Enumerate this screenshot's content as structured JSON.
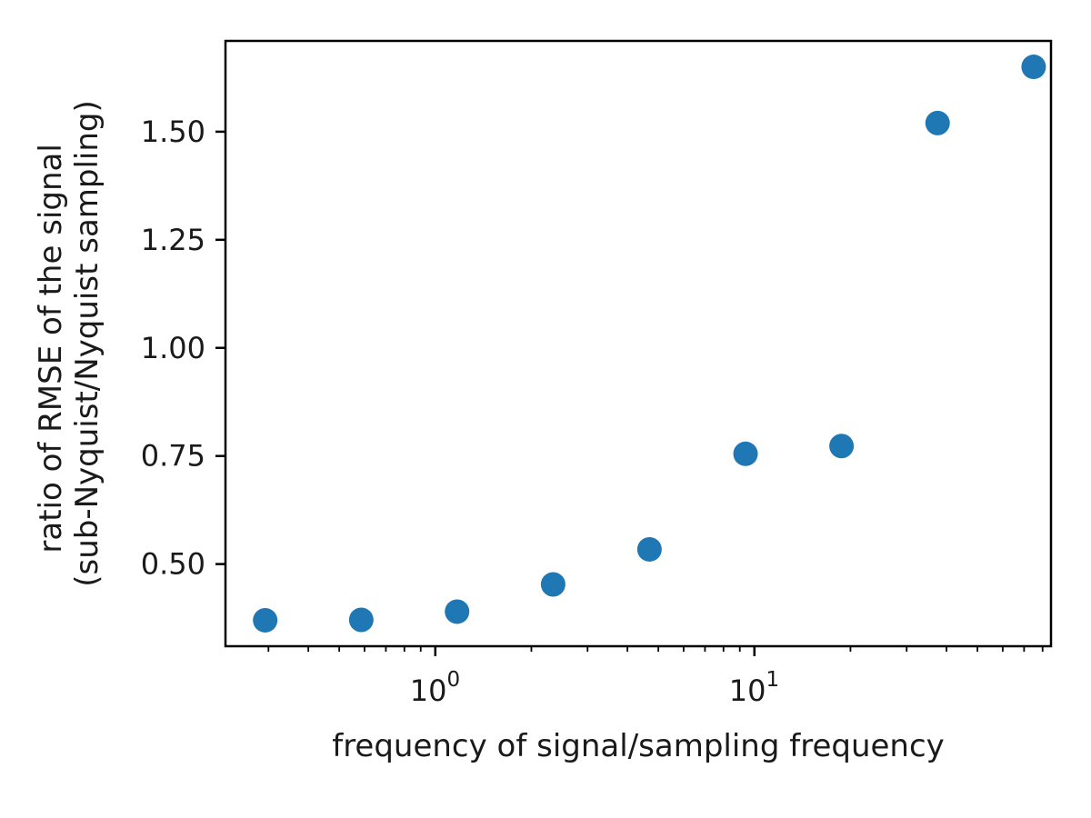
{
  "chart_data": {
    "type": "scatter",
    "title": "",
    "xlabel": "frequency of signal/sampling frequency",
    "ylabel_lines": [
      "ratio of RMSE of the signal",
      "(sub-Nyquist/Nyquist sampling)"
    ],
    "x_scale": "log",
    "xlim": [
      0.22,
      85
    ],
    "ylim": [
      0.31,
      1.71
    ],
    "grid": false,
    "legend": "none",
    "marker_color": "#1f77b4",
    "x_major_ticks": [
      {
        "value": 1,
        "base": "10",
        "exp": "0"
      },
      {
        "value": 10,
        "base": "10",
        "exp": "1"
      }
    ],
    "y_ticks": [
      {
        "value": 0.5,
        "label": "0.50"
      },
      {
        "value": 0.75,
        "label": "0.75"
      },
      {
        "value": 1.0,
        "label": "1.00"
      },
      {
        "value": 1.25,
        "label": "1.25"
      },
      {
        "value": 1.5,
        "label": "1.50"
      }
    ],
    "points": [
      {
        "x": 0.293,
        "y": 0.37
      },
      {
        "x": 0.586,
        "y": 0.371
      },
      {
        "x": 1.17,
        "y": 0.39
      },
      {
        "x": 2.34,
        "y": 0.453
      },
      {
        "x": 4.69,
        "y": 0.534
      },
      {
        "x": 9.38,
        "y": 0.755
      },
      {
        "x": 18.75,
        "y": 0.773
      },
      {
        "x": 37.5,
        "y": 1.52
      },
      {
        "x": 75,
        "y": 1.65
      }
    ]
  }
}
